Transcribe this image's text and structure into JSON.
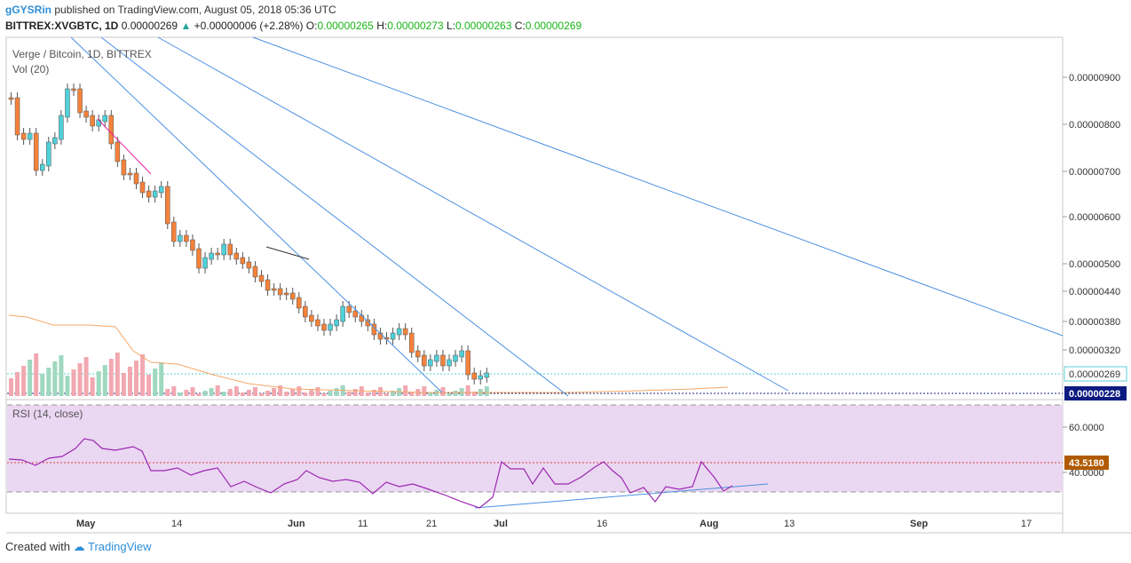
{
  "header": {
    "publisher": "gGYSRin",
    "published_text": "published on TradingView.com, August 05, 2018 05:36 UTC",
    "symbol": "BITTREX:XVGBTC, 1D",
    "last": "0.00000269",
    "change_arrow": "▲",
    "change": "+0.00000006 (+2.28%)",
    "o_label": "O:",
    "o_value": "0.00000265",
    "h_label": "H:",
    "h_value": "0.00000273",
    "l_label": "L:",
    "l_value": "0.00000263",
    "c_label": "C:",
    "c_value": "0.00000269"
  },
  "pane": {
    "title": "Verge / Bitcoin, 1D, BITTREX",
    "vol_label": "Vol (20)",
    "rsi_label": "RSI (14, close)"
  },
  "price_axis": [
    "0.00000900",
    "0.00000800",
    "0.00000700",
    "0.00000600",
    "0.00000500",
    "0.00000440",
    "0.00000380",
    "0.00000320"
  ],
  "price_badges": {
    "last": "0.00000269",
    "low": "0.00000228"
  },
  "rsi_axis": [
    "60.0000",
    "40.0000"
  ],
  "rsi_badge": "43.5180",
  "time_axis": [
    "May",
    "14",
    "Jun",
    "11",
    "21",
    "Jul",
    "16",
    "Aug",
    "13",
    "Sep",
    "17"
  ],
  "colors": {
    "up": "#53b987",
    "down": "#eb4d5c",
    "candle_up": "#4fd1d9",
    "candle_down": "#f5823a",
    "trend": "#4a90e2",
    "rsi": "#9c27b0",
    "rsi_bg": "#ead7f2",
    "ma": "#f6a868"
  },
  "footer": {
    "created": "Created with",
    "brand": "TradingView"
  }
}
